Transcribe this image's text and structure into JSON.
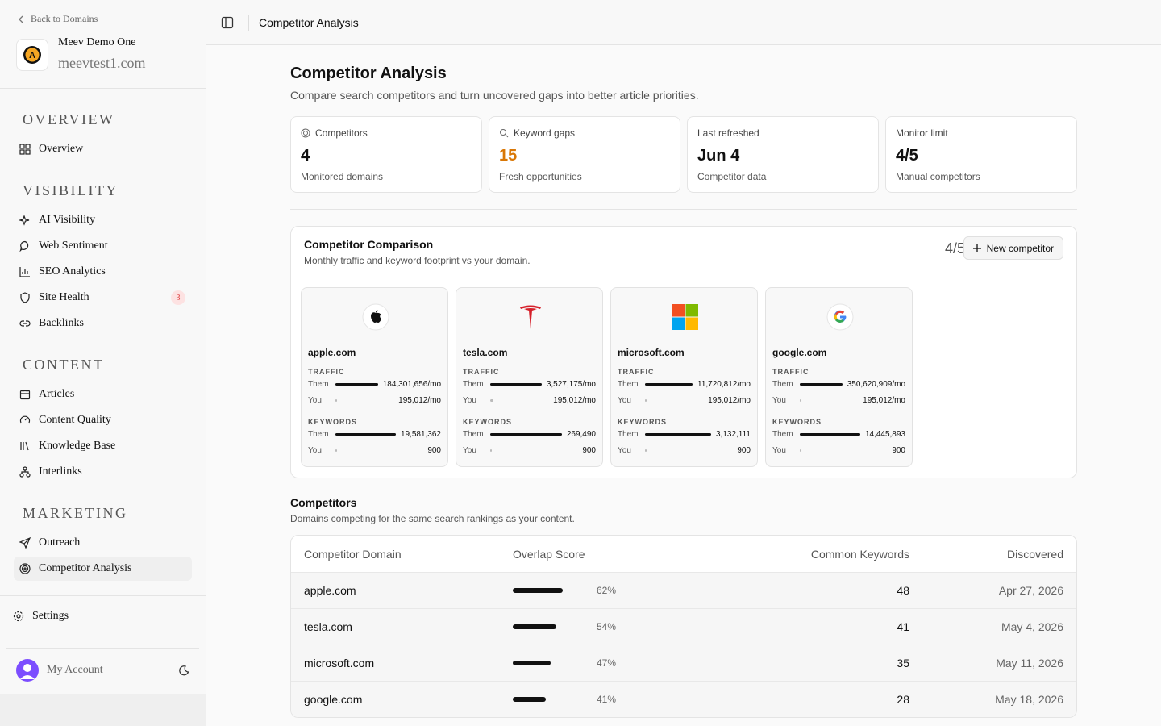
{
  "sidebar": {
    "back": "Back to Domains",
    "project_name": "Meev Demo One",
    "project_domain": "meevtest1.com",
    "sections": [
      {
        "title": "OVERVIEW",
        "items": [
          {
            "label": "Overview"
          }
        ]
      },
      {
        "title": "VISIBILITY",
        "items": [
          {
            "label": "AI Visibility"
          },
          {
            "label": "Web Sentiment"
          },
          {
            "label": "SEO Analytics"
          },
          {
            "label": "Site Health",
            "badge": 3
          },
          {
            "label": "Backlinks"
          }
        ]
      },
      {
        "title": "CONTENT",
        "items": [
          {
            "label": "Articles"
          },
          {
            "label": "Content Quality"
          },
          {
            "label": "Knowledge Base"
          },
          {
            "label": "Interlinks"
          }
        ]
      },
      {
        "title": "MARKETING",
        "items": [
          {
            "label": "Outreach"
          },
          {
            "label": "Competitor Analysis",
            "active": true
          }
        ]
      }
    ],
    "settings": "Settings",
    "account": "My Account"
  },
  "header": {
    "title": "Competitor Analysis"
  },
  "page": {
    "title": "Competitor Analysis",
    "subtitle": "Compare search competitors and turn uncovered gaps into better article priorities."
  },
  "stats": [
    {
      "label": "Competitors",
      "value": 4,
      "note": "Monitored domains"
    },
    {
      "label": "Keyword gaps",
      "value": 15,
      "note": "Fresh opportunities",
      "color": "#d97706"
    },
    {
      "label": "Last refreshed",
      "value": "Jun 4",
      "note": "Competitor data"
    },
    {
      "label": "Monitor limit",
      "value": "4/5",
      "note": "Manual competitors"
    }
  ],
  "comparison": {
    "title": "Competitor Comparison",
    "subtitle": "Monthly traffic and keyword footprint vs your domain.",
    "count": "4/5",
    "button": "New competitor",
    "traffic": "TRAFFIC",
    "keywords": "KEYWORDS",
    "them": "Them",
    "you": "You",
    "cards": [
      {
        "domain": "apple.com",
        "traffic_them": 184301656,
        "traffic_them_label": "184,301,656/mo",
        "traffic_you": 195012,
        "traffic_you_label": "195,012/mo",
        "keywords_them": 19581362,
        "keywords_them_label": "19,581,362",
        "keywords_you": 900
      },
      {
        "domain": "tesla.com",
        "traffic_them": 3527175,
        "traffic_them_label": "3,527,175/mo",
        "traffic_you": 195012,
        "traffic_you_label": "195,012/mo",
        "keywords_them": 269490,
        "keywords_them_label": "269,490",
        "keywords_you": 900
      },
      {
        "domain": "microsoft.com",
        "traffic_them": 11720812,
        "traffic_them_label": "11,720,812/mo",
        "traffic_you": 195012,
        "traffic_you_label": "195,012/mo",
        "keywords_them": 3132111,
        "keywords_them_label": "3,132,111",
        "keywords_you": 900
      },
      {
        "domain": "google.com",
        "traffic_them": 350620909,
        "traffic_them_label": "350,620,909/mo",
        "traffic_you": 195012,
        "traffic_you_label": "195,012/mo",
        "keywords_them": 14445893,
        "keywords_them_label": "14,445,893",
        "keywords_you": 900
      }
    ]
  },
  "competitors": {
    "title": "Competitors",
    "subtitle": "Domains competing for the same search rankings as your content.",
    "columns": [
      "Competitor Domain",
      "Overlap Score",
      "Common Keywords",
      "Discovered"
    ],
    "rows": [
      {
        "domain": "apple.com",
        "overlap": 62,
        "overlap_label": "62%",
        "common": 48,
        "discovered": "Apr 27, 2026"
      },
      {
        "domain": "tesla.com",
        "overlap": 54,
        "overlap_label": "54%",
        "common": 41,
        "discovered": "May 4, 2026"
      },
      {
        "domain": "microsoft.com",
        "overlap": 47,
        "overlap_label": "47%",
        "common": 35,
        "discovered": "May 11, 2026"
      },
      {
        "domain": "google.com",
        "overlap": 41,
        "overlap_label": "41%",
        "common": 28,
        "discovered": "May 18, 2026"
      }
    ]
  }
}
